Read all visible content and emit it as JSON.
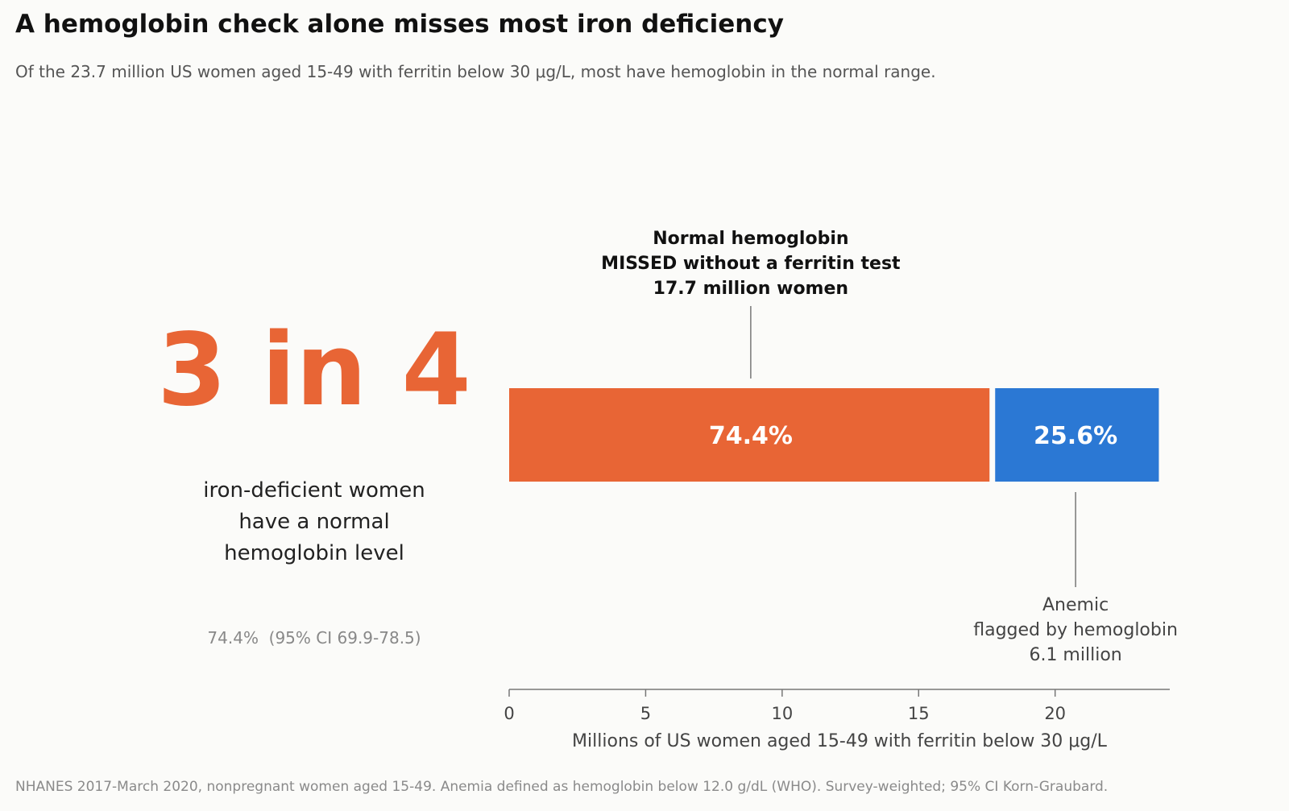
{
  "title": "A hemoglobin check alone misses most iron deficiency",
  "subtitle": "Of the 23.7 million US women aged 15-49 with ferritin below 30 μg/L, most have hemoglobin in the normal range.",
  "headline_stat": {
    "value": "3 in 4",
    "caption_lines": [
      "iron-deficient women",
      "have a normal",
      "hemoglobin level"
    ],
    "ci_text": "74.4%  (95% CI 69.9-78.5)"
  },
  "footnote": "NHANES 2017-March 2020, nonpregnant women aged 15-49. Anemia defined as hemoglobin below 12.0 g/dL (WHO). Survey-weighted; 95% CI Korn-Graubard.",
  "colors": {
    "normal": "#e86535",
    "anemic": "#2b78d4",
    "axis": "#777777"
  },
  "chart_data": {
    "type": "bar",
    "orientation": "horizontal",
    "stacked": true,
    "series": [
      {
        "value": 17.7,
        "bar_label": "74.4%",
        "annotation_lines": [
          "Normal hemoglobin",
          "MISSED without a ferritin test",
          "17.7 million women"
        ],
        "annotation_position": "above"
      },
      {
        "value": 6.1,
        "bar_label": "25.6%",
        "annotation_lines": [
          "Anemic",
          "flagged by hemoglobin",
          "6.1 million"
        ],
        "annotation_position": "below"
      }
    ],
    "xlim": [
      0,
      24.2
    ],
    "xticks": [
      0,
      5,
      10,
      15,
      20
    ],
    "xtick_labels": [
      "0",
      "5",
      "10",
      "15",
      "20"
    ],
    "xlabel": "Millions of US women aged 15-49 with ferritin below 30 μg/L",
    "grid": false,
    "legend": "none"
  }
}
